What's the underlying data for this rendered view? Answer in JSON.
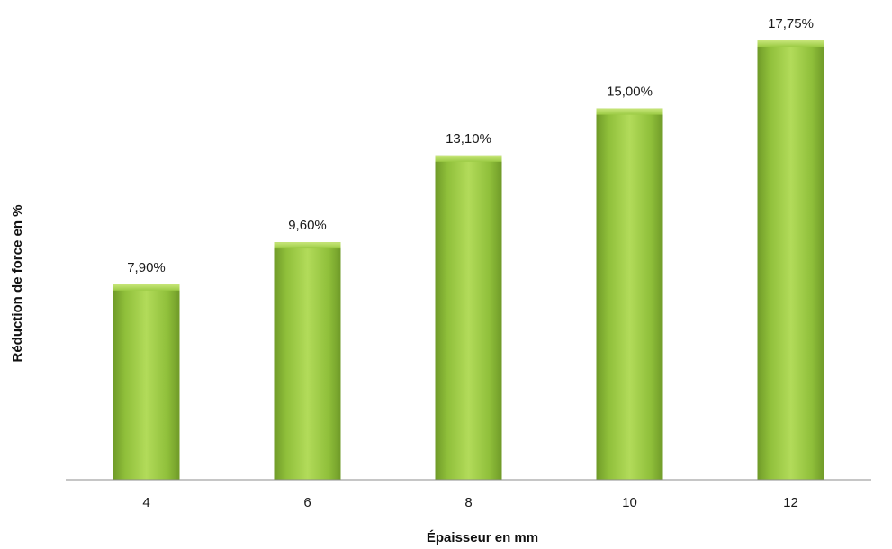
{
  "chart_data": {
    "type": "bar",
    "categories": [
      "4",
      "6",
      "8",
      "10",
      "12"
    ],
    "values": [
      7.9,
      9.6,
      13.1,
      15.0,
      17.75
    ],
    "data_labels": [
      "7,90%",
      "9,60%",
      "13,10%",
      "15,00%",
      "17,75%"
    ],
    "title": "",
    "xlabel": "Épaisseur en mm",
    "ylabel": "Réduction de force en %",
    "ylim": [
      0,
      18
    ],
    "grid": false,
    "legend": "none",
    "bar_color": "#8fbf3a",
    "bar_color_light": "#b2db5a",
    "bar_color_dark": "#6f9a28"
  }
}
